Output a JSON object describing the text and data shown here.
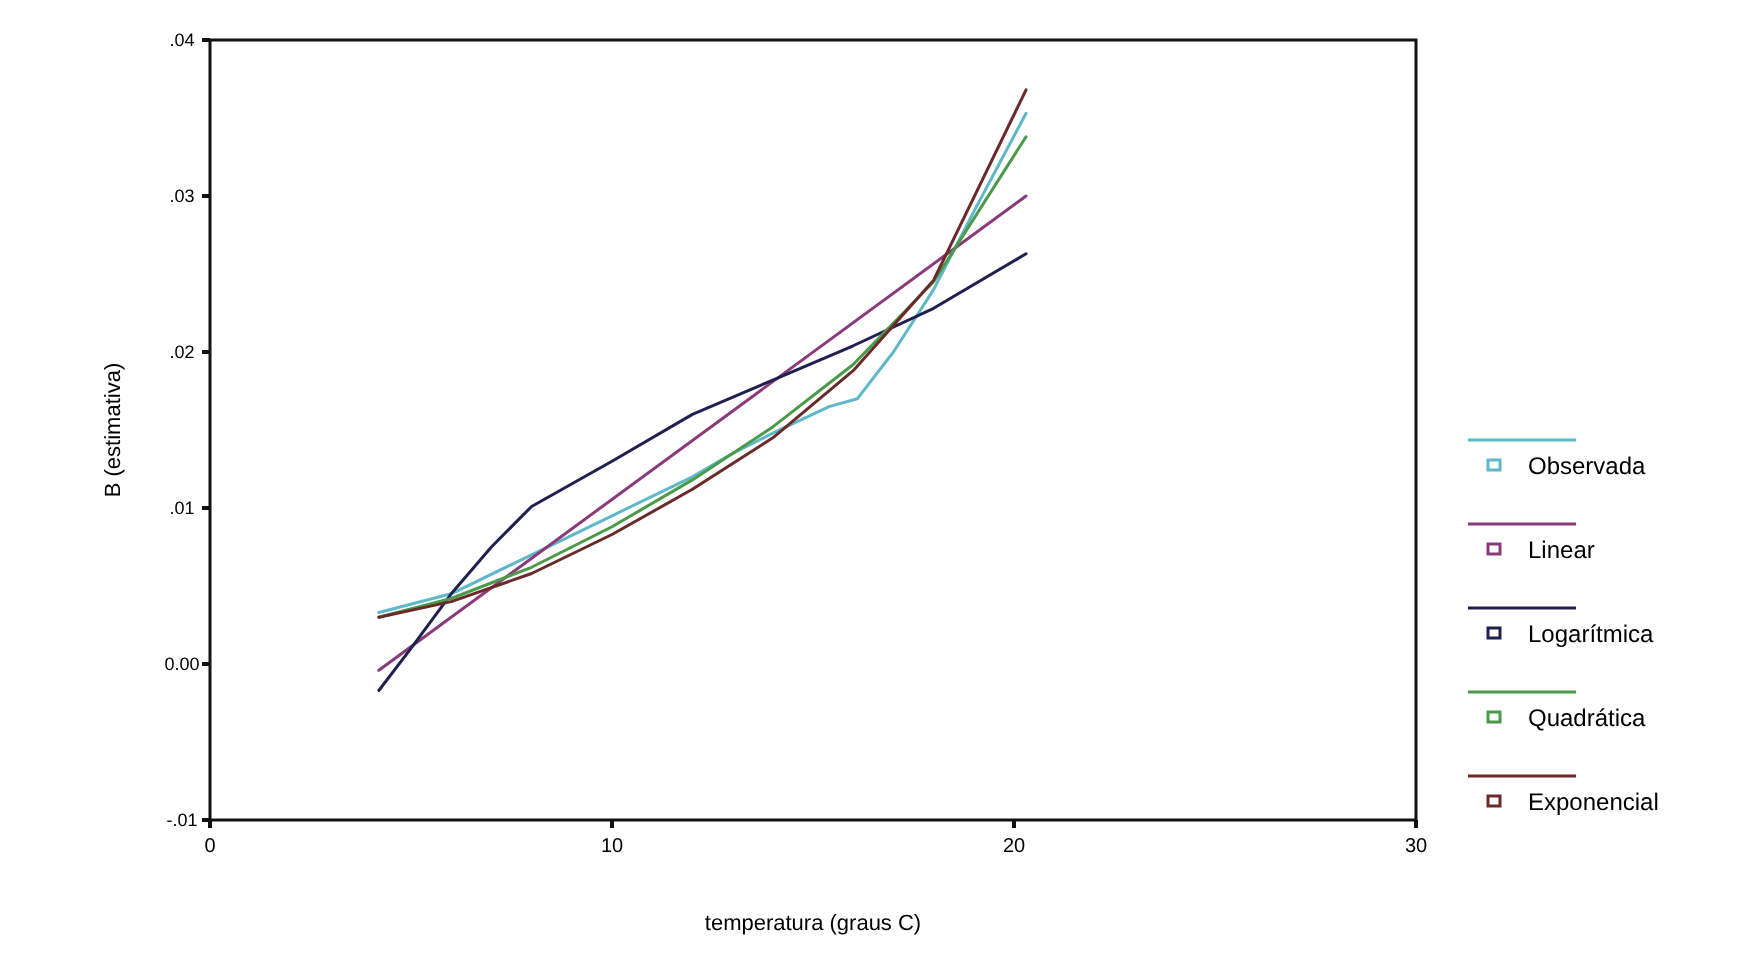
{
  "chart_data": {
    "type": "line",
    "xlabel": "temperatura (graus C)",
    "ylabel": "B (estimativa)",
    "xlim": [
      0,
      30
    ],
    "xticks": [
      0,
      10,
      20,
      30
    ],
    "ylim": [
      -0.01,
      0.04
    ],
    "yticks": [
      {
        "value": -0.01,
        "label": "-.01"
      },
      {
        "value": 0,
        "label": "0.00"
      },
      {
        "value": 0.01,
        "label": ".01"
      },
      {
        "value": 0.02,
        "label": ".02"
      },
      {
        "value": 0.03,
        "label": ".03"
      },
      {
        "value": 0.04,
        "label": ".04"
      }
    ],
    "legend": "right",
    "marker": "none",
    "line_style": "solid",
    "series": [
      {
        "name": "Observada",
        "color": "#5fb8c8",
        "x": [
          4.2,
          6,
          8,
          10,
          12,
          13,
          14,
          15.4,
          16.1,
          17,
          18,
          19,
          20.3
        ],
        "values": [
          0.0033,
          0.0045,
          0.007,
          0.0095,
          0.012,
          0.0135,
          0.0148,
          0.0165,
          0.017,
          0.02,
          0.024,
          0.029,
          0.0353
        ]
      },
      {
        "name": "Linear",
        "color": "#8a3a7a",
        "x": [
          4.2,
          20.3
        ],
        "values": [
          -0.0004,
          0.03
        ]
      },
      {
        "name": "Logarítmica",
        "color": "#202050",
        "x": [
          4.2,
          5,
          6,
          7,
          8,
          10,
          12,
          14,
          16,
          18,
          20.3
        ],
        "values": [
          -0.0017,
          0.001,
          0.0045,
          0.0075,
          0.0101,
          0.013,
          0.016,
          0.0182,
          0.0204,
          0.0228,
          0.0263
        ]
      },
      {
        "name": "Quadrática",
        "color": "#4a9a4a",
        "x": [
          4.2,
          6,
          8,
          10,
          12,
          14,
          16,
          18,
          20.3
        ],
        "values": [
          0.003,
          0.0042,
          0.0062,
          0.0088,
          0.0118,
          0.0152,
          0.0192,
          0.0245,
          0.0338
        ]
      },
      {
        "name": "Exponencial",
        "color": "#6a2a2a",
        "x": [
          4.2,
          6,
          8,
          10,
          12,
          14,
          16,
          18,
          20.3
        ],
        "values": [
          0.003,
          0.004,
          0.0058,
          0.0083,
          0.0112,
          0.0145,
          0.0188,
          0.0246,
          0.0368
        ]
      }
    ]
  }
}
